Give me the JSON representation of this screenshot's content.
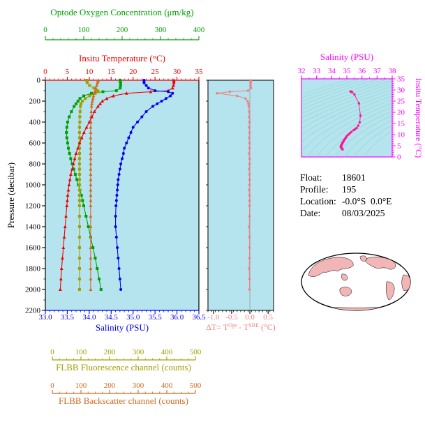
{
  "page": {
    "plot_bg": "#b5e3ee",
    "bg": "#ffffff"
  },
  "info": {
    "lines": [
      {
        "label": "Float:",
        "value": "18601"
      },
      {
        "label": "Profile:",
        "value": "195"
      },
      {
        "label": "Location:",
        "value": "-0.0°S  0.0°E"
      },
      {
        "label": "Date:",
        "value": "08/03/2025"
      }
    ]
  },
  "map": {
    "land_color": "#f2b6b6",
    "ocean_color": "#ffffff",
    "outline_color": "#000000"
  },
  "chart_data": [
    {
      "id": "profiles",
      "type": "line",
      "orientation": "vertical-profile",
      "y_axis": {
        "label": "Pressure (decibar)",
        "min": 0,
        "max": 2200,
        "minor_step": 100,
        "inverted": true,
        "ticks": [
          "0",
          "200",
          "400",
          "600",
          "800",
          "1000",
          "1200",
          "1400",
          "1600",
          "1800",
          "2000",
          "2200"
        ]
      },
      "x_axes": [
        {
          "id": "oxygen",
          "label": "Optode Oxygen Concentration (μm/kg)",
          "min": 0,
          "max": 400,
          "minor_step": 20,
          "color": "#00a000",
          "position": "top-floating",
          "ticks": [
            "0",
            "100",
            "200",
            "300",
            "400"
          ]
        },
        {
          "id": "temperature",
          "label": "Insitu Temperature (°C)",
          "min": 0,
          "max": 35,
          "minor_step": 1,
          "color": "#f00000",
          "position": "top",
          "ticks": [
            "0",
            "5",
            "10",
            "15",
            "20",
            "25",
            "30",
            "35"
          ]
        },
        {
          "id": "salinity",
          "label": "Salinity (PSU)",
          "min": 33.0,
          "max": 36.5,
          "minor_step": 0.1,
          "color": "#0000ee",
          "position": "bottom",
          "ticks": [
            "33.0",
            "33.5",
            "34.0",
            "34.5",
            "35.0",
            "35.5",
            "36.0",
            "36.5"
          ]
        },
        {
          "id": "fluorescence",
          "label": "FLBB Fluorescence channel (counts)",
          "min": 0,
          "max": 500,
          "minor_step": 25,
          "color": "#a0a000",
          "position": "bottom-floating-1",
          "ticks": [
            "0",
            "100",
            "200",
            "300",
            "400",
            "500"
          ]
        },
        {
          "id": "backscatter",
          "label": "FLBB Backscatter channel (counts)",
          "min": 0,
          "max": 500,
          "minor_step": 25,
          "color": "#d2691e",
          "position": "bottom-floating-2",
          "ticks": [
            "0",
            "100",
            "200",
            "300",
            "400",
            "500"
          ]
        }
      ],
      "pressure_dbar": [
        0,
        10,
        25,
        50,
        75,
        100,
        110,
        125,
        150,
        175,
        200,
        225,
        250,
        300,
        350,
        400,
        450,
        500,
        550,
        600,
        650,
        700,
        750,
        800,
        850,
        900,
        950,
        1000,
        1050,
        1100,
        1150,
        1200,
        1300,
        1400,
        1500,
        1600,
        1700,
        1800,
        1900,
        2000
      ],
      "series": [
        {
          "id": "oxygen",
          "name": "Optode Oxygen Concentration",
          "axis": "oxygen",
          "color": "#00a000",
          "marker": "square",
          "values": [
            195,
            195,
            196,
            196,
            195,
            185,
            150,
            120,
            100,
            90,
            85,
            80,
            75,
            68,
            62,
            58,
            56,
            55,
            56,
            58,
            60,
            63,
            66,
            70,
            74,
            78,
            82,
            86,
            90,
            94,
            97,
            100,
            106,
            112,
            118,
            124,
            130,
            135,
            140,
            145
          ]
        },
        {
          "id": "fluorescence",
          "name": "FLBB Fluorescence channel",
          "axis": "fluorescence",
          "color": "#a0a000",
          "marker": "square",
          "values": [
            120,
            121,
            122,
            130,
            145,
            158,
            160,
            150,
            130,
            115,
            105,
            100,
            98,
            97,
            96,
            96,
            95,
            95,
            95,
            95,
            95,
            95,
            95,
            95,
            95,
            95,
            95,
            95,
            95,
            95,
            95,
            95,
            95,
            95,
            95,
            95,
            95,
            95,
            95,
            95
          ]
        },
        {
          "id": "backscatter",
          "name": "FLBB Backscatter channel",
          "axis": "backscatter",
          "color": "#d2691e",
          "marker": "triangle",
          "values": [
            160,
            159,
            158,
            155,
            152,
            150,
            148,
            146,
            144,
            142,
            140,
            138,
            137,
            136,
            135,
            135,
            134,
            134,
            134,
            134,
            134,
            134,
            134,
            134,
            134,
            134,
            134,
            134,
            134,
            134,
            134,
            134,
            134,
            134,
            134,
            134,
            134,
            134,
            134,
            134
          ]
        },
        {
          "id": "temperature",
          "name": "Insitu Temperature",
          "axis": "temperature",
          "color": "#f00000",
          "marker": "triangle",
          "values": [
            29.3,
            29.3,
            29.3,
            29.2,
            29.0,
            28.0,
            24.0,
            18.5,
            15.5,
            14.0,
            13.0,
            12.5,
            12.0,
            11.2,
            10.6,
            10.0,
            9.4,
            8.8,
            8.3,
            7.8,
            7.4,
            7.0,
            6.7,
            6.4,
            6.1,
            5.8,
            5.6,
            5.4,
            5.25,
            5.1,
            5.0,
            4.9,
            4.7,
            4.5,
            4.3,
            4.1,
            3.9,
            3.7,
            3.55,
            3.4
          ]
        },
        {
          "id": "salinity",
          "name": "Salinity",
          "axis": "salinity",
          "color": "#0000ee",
          "marker": "circle",
          "values": [
            35.25,
            35.25,
            35.25,
            35.3,
            35.35,
            35.5,
            35.8,
            35.9,
            35.85,
            35.75,
            35.65,
            35.55,
            35.45,
            35.3,
            35.2,
            35.1,
            35.0,
            34.95,
            34.9,
            34.85,
            34.8,
            34.78,
            34.75,
            34.72,
            34.7,
            34.68,
            34.66,
            34.65,
            34.64,
            34.63,
            34.62,
            34.61,
            34.6,
            34.6,
            34.62,
            34.64,
            34.66,
            34.68,
            34.7,
            34.72
          ]
        }
      ]
    },
    {
      "id": "delta_t",
      "type": "line",
      "color": "#f08080",
      "marker": "circle",
      "zero_line": true,
      "x_axis": {
        "min": -1.15,
        "max": 0.65,
        "minor_step": 0.1,
        "ticks": [
          "-1.0",
          "-0.5",
          "0.0",
          "0.5"
        ],
        "label_color": "#f08080",
        "label_parts": [
          {
            "t": "ΔT= T",
            "sup": false
          },
          {
            "t": "Opt",
            "sup": true
          },
          {
            "t": " - T",
            "sup": false
          },
          {
            "t": "SBE",
            "sup": true
          },
          {
            "t": " (°C)",
            "sup": false
          }
        ]
      },
      "pressure_dbar": [
        0,
        10,
        25,
        50,
        75,
        100,
        110,
        125,
        150,
        175,
        200,
        225,
        250,
        300,
        350,
        400,
        450,
        500,
        550,
        600,
        650,
        700,
        750,
        800,
        850,
        900,
        950,
        1000,
        1050,
        1100,
        1150,
        1200,
        1300,
        1400,
        1500,
        1600,
        1700,
        1800,
        1900,
        2000
      ],
      "values": [
        0.02,
        0.02,
        0.02,
        0.02,
        0.03,
        -0.05,
        -0.55,
        -0.9,
        -0.35,
        -0.12,
        -0.06,
        -0.04,
        -0.03,
        -0.02,
        -0.02,
        -0.01,
        -0.02,
        -0.01,
        -0.02,
        -0.01,
        -0.01,
        -0.02,
        -0.01,
        -0.01,
        -0.02,
        -0.01,
        -0.01,
        -0.01,
        -0.02,
        -0.01,
        -0.01,
        -0.01,
        -0.01,
        -0.02,
        -0.01,
        -0.01,
        -0.01,
        -0.02,
        -0.01,
        -0.01
      ]
    },
    {
      "id": "ts_diagram",
      "type": "scatter",
      "point_color": "#ff1493",
      "x_axis": {
        "label": "Salinity (PSU)",
        "min": 32,
        "max": 38,
        "minor_step": 0.5,
        "color": "#ff00ff",
        "ticks": [
          "32",
          "33",
          "34",
          "35",
          "36",
          "37",
          "38"
        ]
      },
      "y_axis": {
        "label": "Insitu Temperature (°C)",
        "min": 0,
        "max": 35,
        "minor_step": 1,
        "color": "#ff00ff",
        "ticks": [
          "0",
          "5",
          "10",
          "15",
          "20",
          "25",
          "30",
          "35"
        ]
      },
      "isopycnals": {
        "sigma_theta": [
          20,
          20.5,
          21,
          21.5,
          22,
          22.5,
          23,
          23.5,
          24,
          24.5,
          25,
          25.5,
          26,
          26.5,
          27,
          27.5,
          28,
          28.5,
          29
        ],
        "color": "#8ad8cc"
      },
      "salinity_psu": [
        35.25,
        35.25,
        35.25,
        35.3,
        35.35,
        35.5,
        35.8,
        35.9,
        35.85,
        35.75,
        35.65,
        35.55,
        35.45,
        35.3,
        35.2,
        35.1,
        35.0,
        34.95,
        34.9,
        34.85,
        34.8,
        34.78,
        34.75,
        34.72,
        34.7,
        34.68,
        34.66,
        34.65,
        34.64,
        34.63,
        34.62,
        34.61,
        34.6,
        34.6,
        34.62,
        34.64,
        34.66,
        34.68,
        34.7,
        34.72
      ],
      "temperature_c": [
        29.3,
        29.3,
        29.3,
        29.2,
        29.0,
        28.0,
        24.0,
        18.5,
        15.5,
        14.0,
        13.0,
        12.5,
        12.0,
        11.2,
        10.6,
        10.0,
        9.4,
        8.8,
        8.3,
        7.8,
        7.4,
        7.0,
        6.7,
        6.4,
        6.1,
        5.8,
        5.6,
        5.4,
        5.25,
        5.1,
        5.0,
        4.9,
        4.7,
        4.5,
        4.3,
        4.1,
        3.9,
        3.7,
        3.55,
        3.4
      ]
    }
  ]
}
